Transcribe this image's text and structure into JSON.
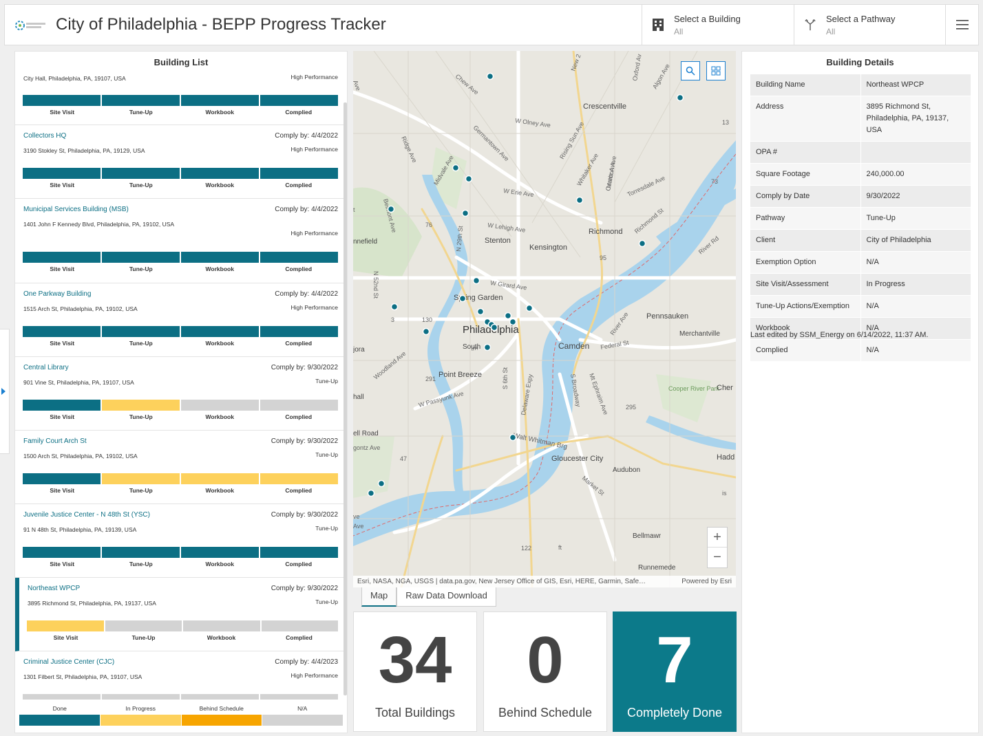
{
  "header": {
    "title": "City of Philadelphia - BEPP Progress Tracker",
    "building_selector": {
      "label": "Select a Building",
      "value": "All"
    },
    "pathway_selector": {
      "label": "Select a Pathway",
      "value": "All"
    }
  },
  "building_list": {
    "title": "Building List",
    "stage_labels": [
      "Site Visit",
      "Tune-Up",
      "Workbook",
      "Complied"
    ],
    "items": [
      {
        "name": "",
        "comply_by": "",
        "address": "City Hall, Philadelphia, PA, 19107, USA",
        "pathway": "High Performance",
        "stages": [
          "done",
          "done",
          "done",
          "done"
        ]
      },
      {
        "name": "Collectors HQ",
        "comply_by": "Comply by: 4/4/2022",
        "address": "3190 Stokley St, Philadelphia, PA, 19129, USA",
        "pathway": "High Performance",
        "stages": [
          "done",
          "done",
          "done",
          "done"
        ]
      },
      {
        "name": "Municipal Services Building (MSB)",
        "comply_by": "Comply by: 4/4/2022",
        "address": "1401 John F Kennedy Blvd, Philadelphia, PA, 19102, USA",
        "pathway": "High Performance",
        "stages": [
          "done",
          "done",
          "done",
          "done"
        ]
      },
      {
        "name": "One Parkway Building",
        "comply_by": "Comply by: 4/4/2022",
        "address": "1515 Arch St, Philadelphia, PA, 19102, USA",
        "pathway": "High Performance",
        "stages": [
          "done",
          "done",
          "done",
          "done"
        ]
      },
      {
        "name": "Central Library",
        "comply_by": "Comply by: 9/30/2022",
        "address": "901 Vine St, Philadelphia, PA, 19107, USA",
        "pathway": "Tune-Up",
        "stages": [
          "done",
          "progress",
          "na",
          "na"
        ]
      },
      {
        "name": "Family Court Arch St",
        "comply_by": "Comply by: 9/30/2022",
        "address": "1500 Arch St, Philadelphia, PA, 19102, USA",
        "pathway": "Tune-Up",
        "stages": [
          "done",
          "progress",
          "progress",
          "progress"
        ]
      },
      {
        "name": "Juvenile Justice Center - N 48th St (YSC)",
        "comply_by": "Comply by: 9/30/2022",
        "address": "91 N 48th St, Philadelphia, PA, 19139, USA",
        "pathway": "Tune-Up",
        "stages": [
          "done",
          "done",
          "done",
          "done"
        ]
      },
      {
        "name": "Northeast WPCP",
        "comply_by": "Comply by: 9/30/2022",
        "address": "3895 Richmond St, Philadelphia, PA, 19137, USA",
        "pathway": "Tune-Up",
        "stages": [
          "progress",
          "na",
          "na",
          "na"
        ]
      },
      {
        "name": "Criminal Justice Center (CJC)",
        "comply_by": "Comply by: 4/4/2023",
        "address": "1301 Filbert St, Philadelphia, PA, 19107, USA",
        "pathway": "High Performance",
        "stages": [
          "na",
          "na",
          "na",
          "na"
        ]
      }
    ],
    "legend": [
      {
        "label": "Done",
        "color": "#0c6f84"
      },
      {
        "label": "In Progress",
        "color": "#fdd15c"
      },
      {
        "label": "Behind Schedule",
        "color": "#f7a500"
      },
      {
        "label": "N/A",
        "color": "#d3d3d3"
      }
    ]
  },
  "map": {
    "attribution": "Esri, NASA, NGA, USGS | data.pa.gov, New Jersey Office of GIS, Esri, HERE, Garmin, Safe…",
    "powered_by": "Powered by Esri",
    "place_labels": [
      "Crescentville",
      "Stenton",
      "Kensington",
      "Richmond",
      "Spring Garden",
      "Philadelphia",
      "Camden",
      "Pennsauken",
      "Merchantville",
      "Point Breeze",
      "Gloucester City",
      "Audubon",
      "Bellmawr",
      "Runnemede",
      "Cooper River Park",
      "Cher",
      "Hadd",
      "hall",
      "ell Road",
      "nnefield",
      "jora",
      "South",
      "W Olney Ave",
      "W Erie Ave",
      "W Lehigh Ave",
      "W Girard Ave",
      "Torresdale Ave",
      "Richmond St",
      "River Rd",
      "Federal St",
      "Walt Whitman Brg",
      "Delaware Expy",
      "Woodland Ave",
      "W Passyunk Ave",
      "Germantown Ave",
      "Ridge Ave",
      "Chew Ave",
      "Rising Sun Ave",
      "Whitaker Ave",
      "Castor Ave",
      "Oxford Av",
      "Algon Ave",
      "New 2",
      "Midvale Ave",
      "Belmont Ave",
      "N 29th St",
      "N 52nd St",
      "S 6th St",
      "S Broadway",
      "Mt Ephraim Ave",
      "Marlton Ave",
      "River Ave",
      "Market St",
      "Ave",
      "ve",
      "13",
      "73",
      "76",
      "95",
      "3",
      "130",
      "291",
      "295",
      "47",
      "122",
      "ft",
      "is",
      "t",
      "Ave",
      "gontz Ave",
      "lm"
    ]
  },
  "tabs": [
    "Map",
    "Raw Data Download"
  ],
  "stats": [
    {
      "value": "34",
      "label": "Total Buildings"
    },
    {
      "value": "0",
      "label": "Behind Schedule"
    },
    {
      "value": "7",
      "label": "Completely Done"
    }
  ],
  "details": {
    "title": "Building Details",
    "rows": [
      {
        "label": "Building Name",
        "value": "Northeast WPCP"
      },
      {
        "label": "Address",
        "value": "3895 Richmond St, Philadelphia, PA, 19137, USA"
      },
      {
        "label": "OPA #",
        "value": ""
      },
      {
        "label": "Square Footage",
        "value": "240,000.00"
      },
      {
        "label": "Comply by Date",
        "value": "9/30/2022"
      },
      {
        "label": "Pathway",
        "value": "Tune-Up"
      },
      {
        "label": "Client",
        "value": "City of Philadelphia"
      },
      {
        "label": "Exemption Option",
        "value": "N/A"
      },
      {
        "label": "Site Visit/Assessment",
        "value": "In Progress"
      },
      {
        "label": "Tune-Up Actions/Exemption",
        "value": "N/A"
      },
      {
        "label": "Workbook",
        "value": "N/A"
      },
      {
        "label": "Complied",
        "value": "N/A"
      }
    ],
    "last_edited": "Last edited by SSM_Energy on 6/14/2022, 11:37 AM."
  },
  "colors": {
    "done": "#0c6f84",
    "progress": "#fdd15c",
    "behind": "#f7a500",
    "na": "#d3d3d3",
    "accent": "#0c7a8a"
  }
}
